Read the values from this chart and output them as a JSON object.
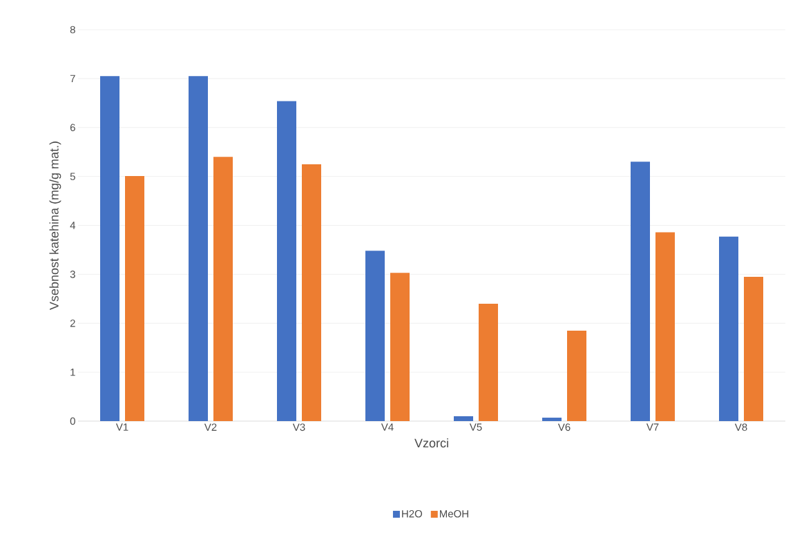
{
  "chart_data": {
    "type": "bar",
    "xlabel": "Vzorci",
    "ylabel": "Vsebnost katehina (mg/g mat.)",
    "categories": [
      "V1",
      "V2",
      "V3",
      "V4",
      "V5",
      "V6",
      "V7",
      "V8"
    ],
    "series": [
      {
        "name": "H2O",
        "color": "#4472c4",
        "values": [
          7.05,
          7.05,
          6.54,
          3.48,
          0.1,
          0.07,
          5.3,
          3.77
        ]
      },
      {
        "name": "MeOH",
        "color": "#ed7d31",
        "values": [
          5.01,
          5.4,
          5.25,
          3.03,
          2.4,
          1.85,
          3.86,
          2.95
        ]
      }
    ],
    "ylim": [
      0,
      8
    ],
    "yticks": [
      0,
      1,
      2,
      3,
      4,
      5,
      6,
      7,
      8
    ],
    "grid": "y",
    "legend": "bottom"
  }
}
